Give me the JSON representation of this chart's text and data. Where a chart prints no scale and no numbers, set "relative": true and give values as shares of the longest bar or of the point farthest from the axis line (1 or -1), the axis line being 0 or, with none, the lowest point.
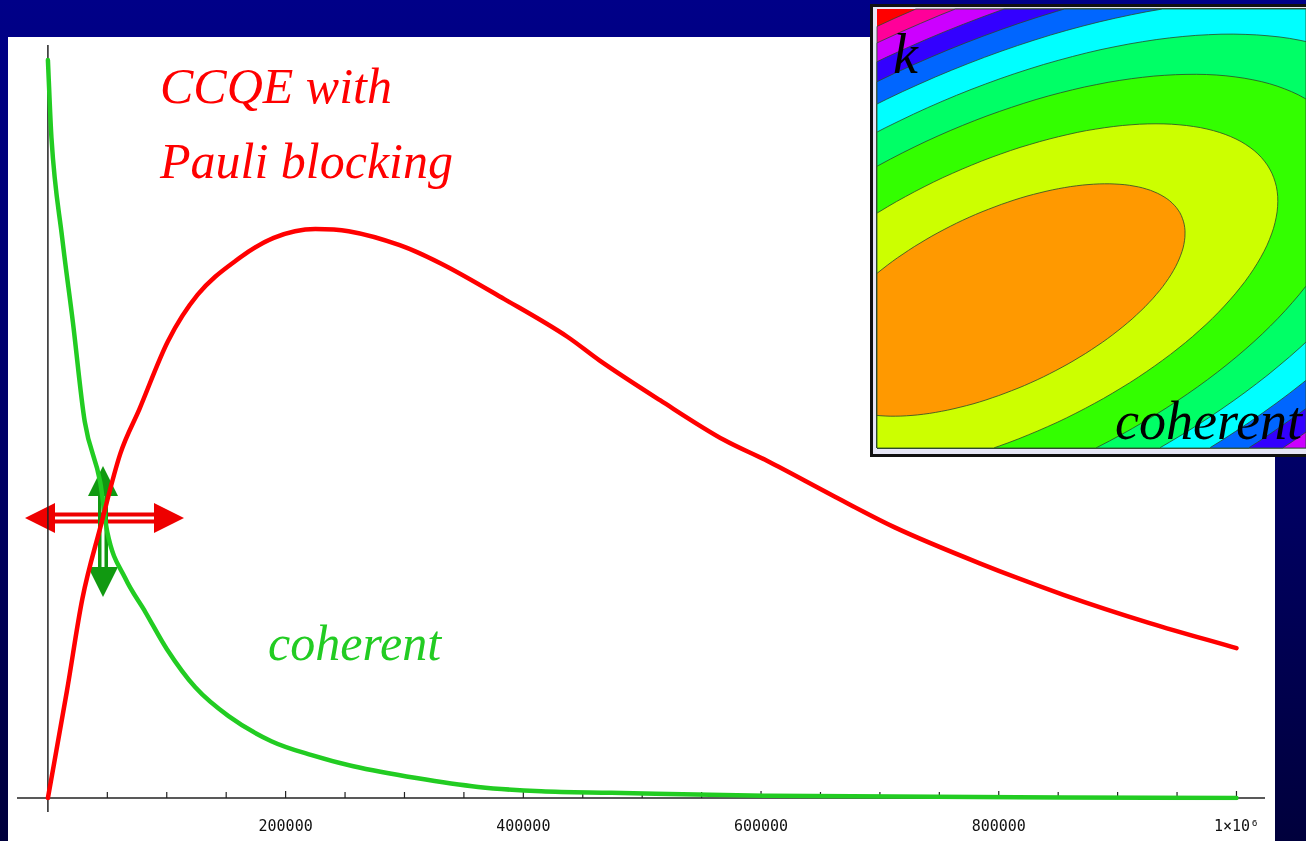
{
  "chart_data": {
    "type": "line",
    "relative": true,
    "marker": "none",
    "line_style": "solid",
    "tick_labels": "x",
    "xlim": [
      -26000,
      1024000
    ],
    "xticks": [
      {
        "value": 50000,
        "label": null
      },
      {
        "value": 100000,
        "label": null
      },
      {
        "value": 150000,
        "label": null
      },
      200000,
      {
        "value": 250000,
        "label": null
      },
      {
        "value": 300000,
        "label": null
      },
      {
        "value": 350000,
        "label": null
      },
      400000,
      {
        "value": 450000,
        "label": null
      },
      {
        "value": 500000,
        "label": null
      },
      {
        "value": 550000,
        "label": null
      },
      600000,
      {
        "value": 650000,
        "label": null
      },
      {
        "value": 700000,
        "label": null
      },
      {
        "value": 750000,
        "label": null
      },
      800000,
      {
        "value": 850000,
        "label": null
      },
      {
        "value": 900000,
        "label": null
      },
      {
        "value": 950000,
        "label": null
      },
      {
        "value": 1000000,
        "label": "1×10⁶"
      }
    ],
    "series": [
      {
        "name": "CCQE with Pauli blocking",
        "color": "#ff0000",
        "x": [
          0,
          16000,
          29000,
          44000,
          61000,
          77000,
          101000,
          126000,
          158000,
          190000,
          225000,
          253000,
          296000,
          331000,
          384000,
          437000,
          464000,
          515000,
          569000,
          605000,
          659000,
          712000,
          784000,
          855000,
          927000,
          1000000
        ],
        "values": [
          0,
          0.145,
          0.27,
          0.366,
          0.467,
          0.527,
          0.619,
          0.682,
          0.728,
          0.759,
          0.771,
          0.768,
          0.749,
          0.724,
          0.676,
          0.625,
          0.593,
          0.539,
          0.485,
          0.457,
          0.411,
          0.367,
          0.318,
          0.275,
          0.237,
          0.203
        ]
      },
      {
        "name": "coherent",
        "color": "#22cc22",
        "x": [
          0,
          3000,
          12000,
          21000,
          31000,
          44000,
          50000,
          65000,
          82000,
          100000,
          124000,
          152000,
          188000,
          222000,
          257000,
          310000,
          362000,
          415000,
          474000,
          607000,
          1000000
        ],
        "values": [
          1,
          0.894,
          0.759,
          0.645,
          0.51,
          0.428,
          0.36,
          0.298,
          0.252,
          0.202,
          0.15,
          0.111,
          0.077,
          0.058,
          0.043,
          0.027,
          0.015,
          0.009,
          0.007,
          0.003,
          0
        ]
      }
    ],
    "annotations": [
      "k",
      "coherent"
    ]
  }
}
